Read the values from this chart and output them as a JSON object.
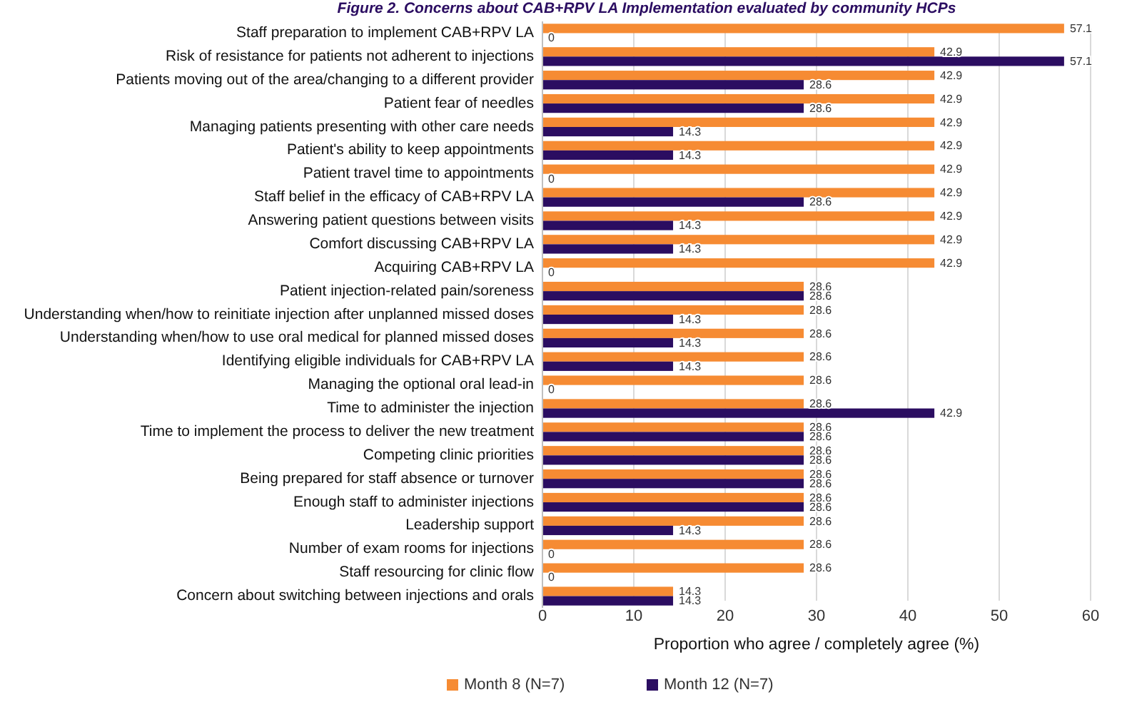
{
  "chart_data": {
    "type": "bar",
    "orientation": "horizontal",
    "title": "Figure 2. Concerns about CAB+RPV LA Implementation evaluated by community HCPs",
    "xlabel": "Proportion who agree / completely agree (%)",
    "categories": [
      "Staff preparation to implement CAB+RPV LA",
      "Risk of resistance for patients not adherent to injections",
      "Patients moving out of the area/changing to a different provider",
      "Patient fear of needles",
      "Managing patients presenting with other care needs",
      "Patient's ability to keep appointments",
      "Patient travel time to appointments",
      "Staff belief in the efficacy of CAB+RPV LA",
      "Answering patient questions between visits",
      "Comfort discussing CAB+RPV LA",
      "Acquiring CAB+RPV LA",
      "Patient injection-related pain/soreness",
      "Understanding when/how to reinitiate injection after unplanned missed doses",
      "Understanding when/how to use oral medical for planned missed doses",
      "Identifying eligible individuals for CAB+RPV LA",
      "Managing the optional oral lead-in ",
      "Time to administer the injection",
      "Time to implement the process to deliver the new treatment",
      "Competing clinic priorities",
      "Being prepared for staff absence or turnover",
      "Enough staff to administer injections",
      "Leadership support",
      "Number of exam rooms for injections",
      "Staff resourcing for clinic flow",
      "Concern about switching between injections and orals"
    ],
    "series": [
      {
        "name": "Month 8 (N=7)",
        "color": "#f68b33",
        "values": [
          57.1,
          42.9,
          42.9,
          42.9,
          42.9,
          42.9,
          42.9,
          42.9,
          42.9,
          42.9,
          42.9,
          28.6,
          28.6,
          28.6,
          28.6,
          28.6,
          28.6,
          28.6,
          28.6,
          28.6,
          28.6,
          28.6,
          28.6,
          28.6,
          14.3
        ]
      },
      {
        "name": "Month 12 (N=7)",
        "color": "#2b0d61",
        "values": [
          0,
          57.1,
          28.6,
          28.6,
          14.3,
          14.3,
          0,
          28.6,
          14.3,
          14.3,
          0,
          28.6,
          14.3,
          14.3,
          14.3,
          0,
          42.9,
          28.6,
          28.6,
          28.6,
          28.6,
          14.3,
          0,
          0,
          14.3
        ]
      }
    ],
    "xlim": [
      0,
      60
    ],
    "xticks": [
      0,
      10,
      20,
      30,
      40,
      50,
      60
    ],
    "grid": "x",
    "legend": "bottom",
    "data_labels": true
  }
}
